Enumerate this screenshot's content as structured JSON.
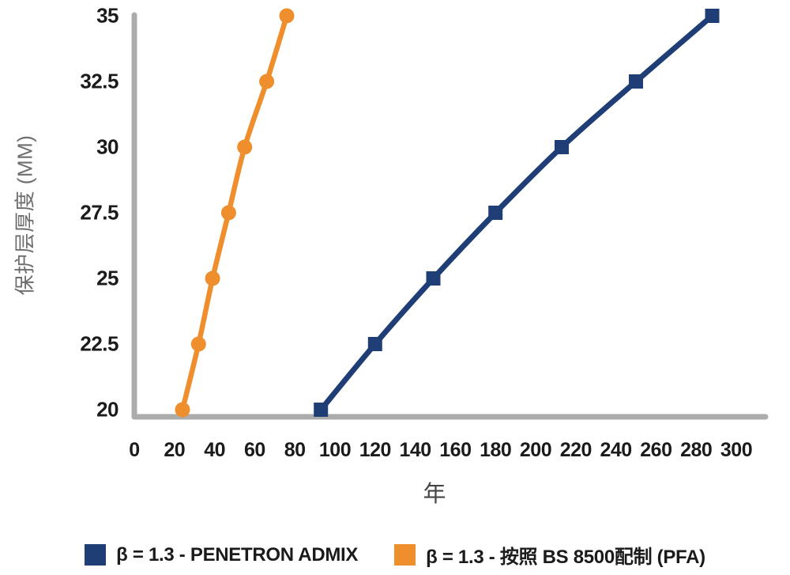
{
  "chart_data": {
    "type": "line",
    "title": "",
    "xlabel": "年",
    "ylabel": "保护层厚度 (MM)",
    "xlim": [
      0,
      316
    ],
    "ylim": [
      20,
      35
    ],
    "grid": false,
    "legend_position": "bottom",
    "axis_color": "#acacac",
    "tick_text_color": "#1b1b1b",
    "axis_title_color": "#6e6e6e",
    "x_ticks": [
      0,
      20,
      40,
      60,
      80,
      100,
      120,
      140,
      160,
      180,
      200,
      220,
      240,
      260,
      280,
      300
    ],
    "y_ticks": [
      20,
      22.5,
      25,
      27.5,
      30,
      32.5,
      35
    ],
    "series": [
      {
        "name": "β = 1.3 - PENETRON ADMIX",
        "color": "#1f3e76",
        "marker": "square",
        "x": [
          93,
          120,
          149,
          180,
          213,
          250,
          288
        ],
        "y": [
          20,
          22.5,
          25,
          27.5,
          30,
          32.5,
          35
        ]
      },
      {
        "name": "β = 1.3 - 按照 BS 8500配制 (PFA)",
        "color": "#ee8e2c",
        "marker": "circle",
        "x": [
          24,
          32,
          39,
          47,
          55,
          66,
          76
        ],
        "y": [
          20,
          22.5,
          25,
          27.5,
          30,
          32.5,
          35
        ]
      }
    ]
  }
}
